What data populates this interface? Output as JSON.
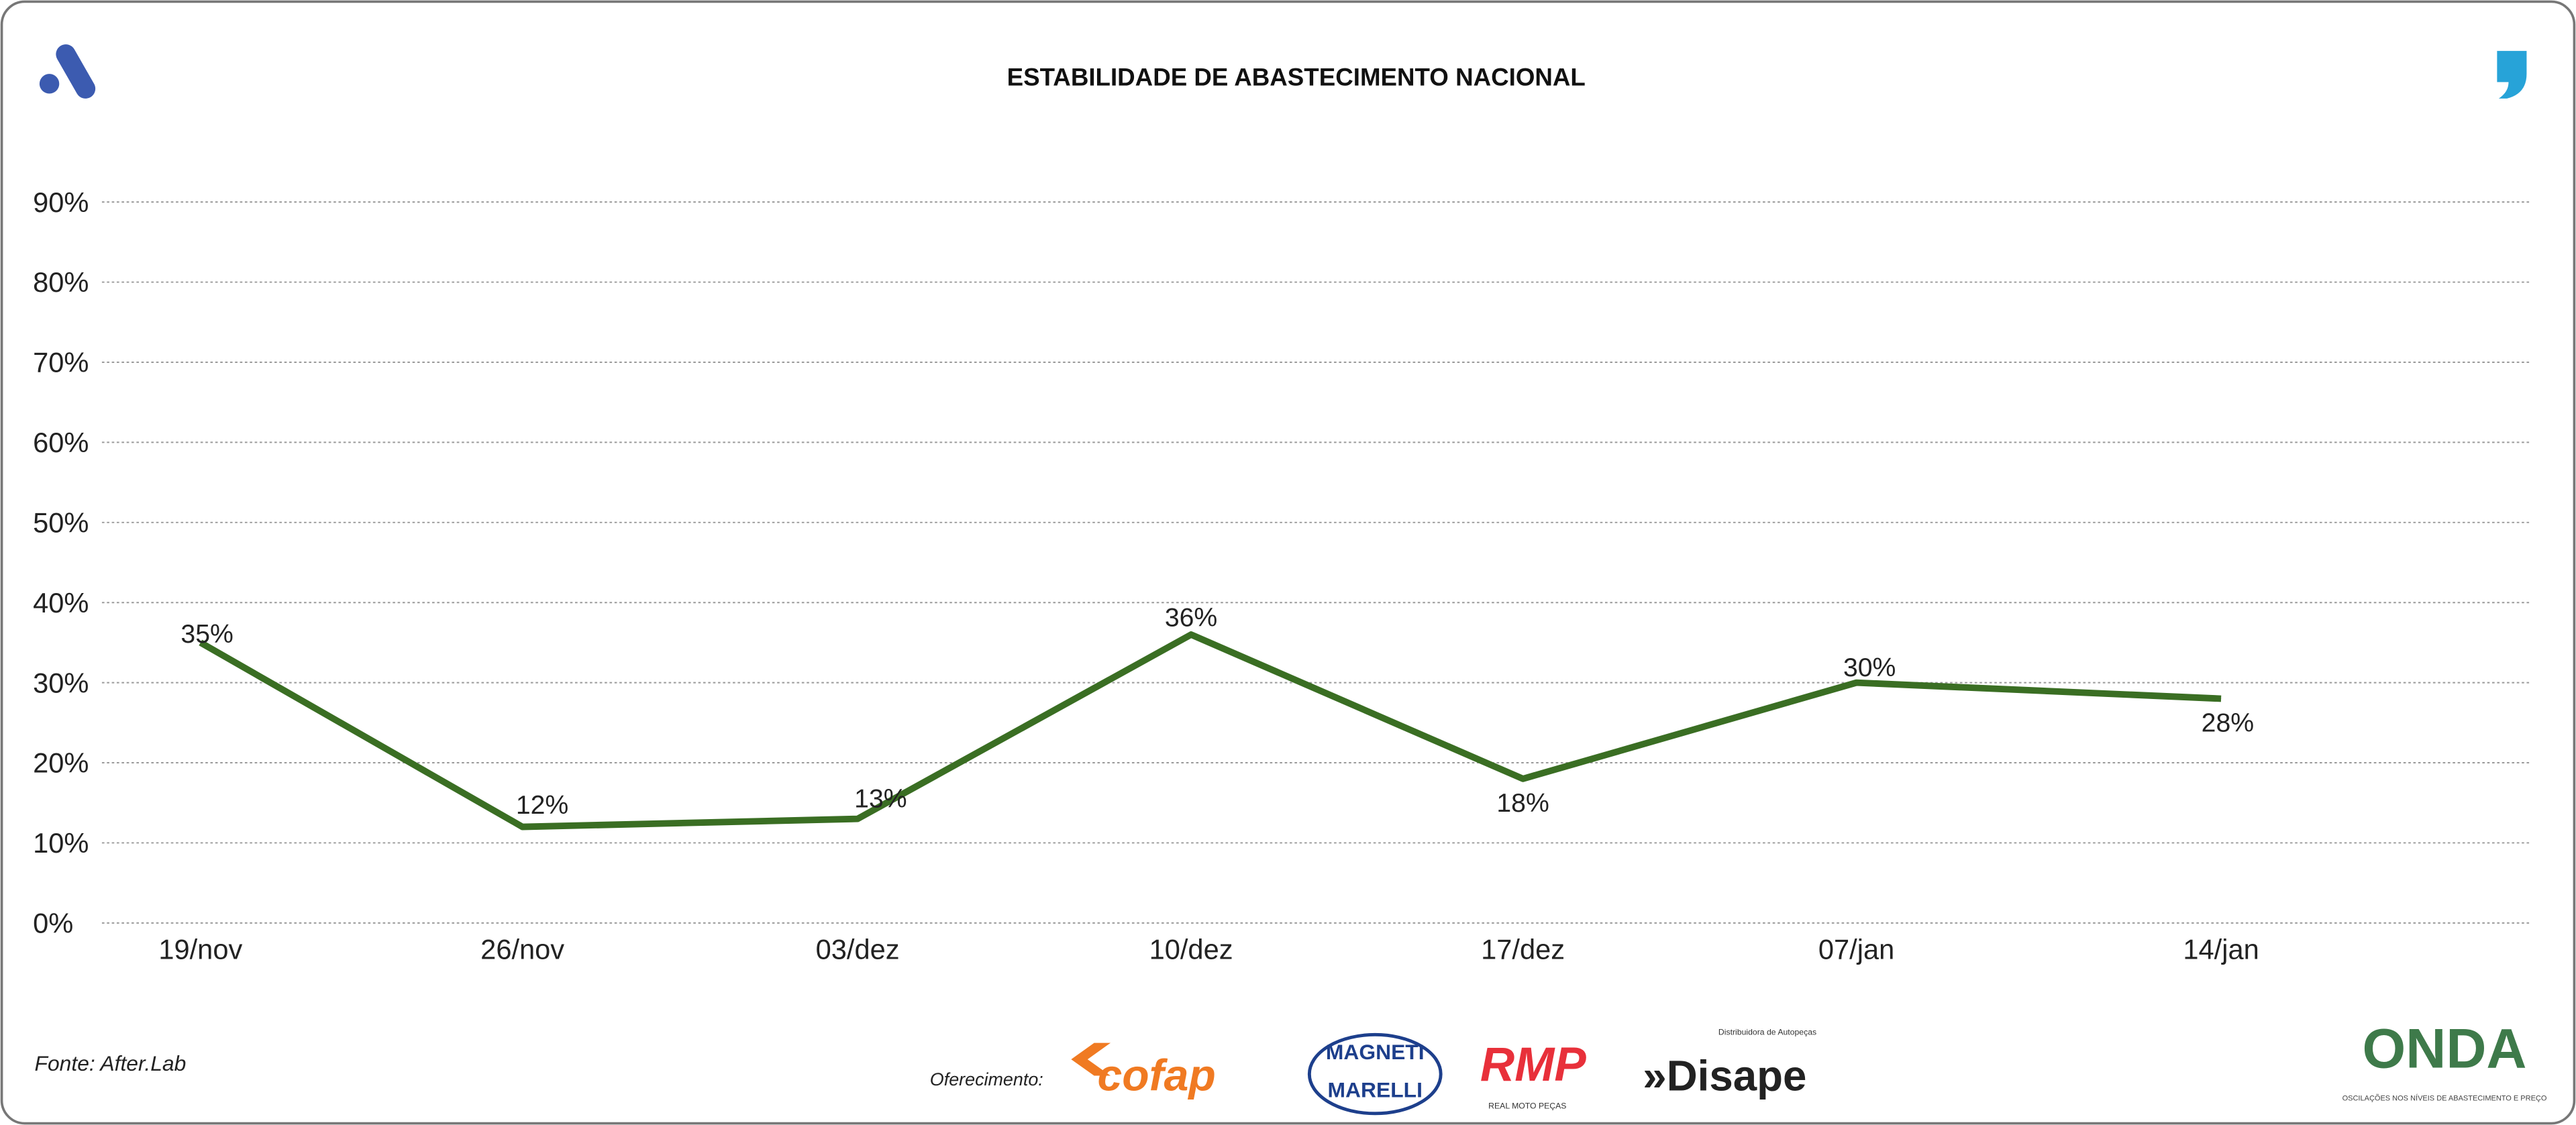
{
  "chart_data": {
    "type": "line",
    "title": "ESTABILIDADE DE ABASTECIMENTO NACIONAL",
    "categories": [
      "19/nov",
      "26/nov",
      "03/dez",
      "10/dez",
      "17/dez",
      "07/jan",
      "14/jan"
    ],
    "series": [
      {
        "values": [
          35,
          12,
          13,
          36,
          18,
          30,
          28
        ],
        "color": "#3a6e23"
      }
    ],
    "data_labels": [
      "35%",
      "12%",
      "13%",
      "36%",
      "18%",
      "30%",
      "28%"
    ],
    "yticks": [
      "0%",
      "10%",
      "20%",
      "30%",
      "40%",
      "50%",
      "60%",
      "70%",
      "80%",
      "90%"
    ],
    "ylim": [
      0,
      90
    ],
    "grid": true,
    "legend": "none"
  },
  "footer": {
    "source": "Fonte: After.Lab",
    "sponsor_label": "Oferecimento:",
    "sponsors": [
      "cofap",
      "MAGNETI MARELLI",
      "RMP",
      "Disape"
    ],
    "rmp_tagline": "REAL MOTO PEÇAS",
    "disape_tagline": "Distribuidora de Autopeças",
    "brand": "ONDA",
    "brand_tagline": "OSCILAÇÕES NOS NÍVEIS DE ABASTECIMENTO E PREÇO"
  },
  "colors": {
    "line": "#3a6e23",
    "logo_left": "#3c5bb0",
    "logo_right": "#27a3d8",
    "cofap": "#f07a22",
    "magneti": "#1d3f8c",
    "rmp": "#e8303a",
    "disape": "#222222",
    "onda": "#3e7a4a"
  }
}
